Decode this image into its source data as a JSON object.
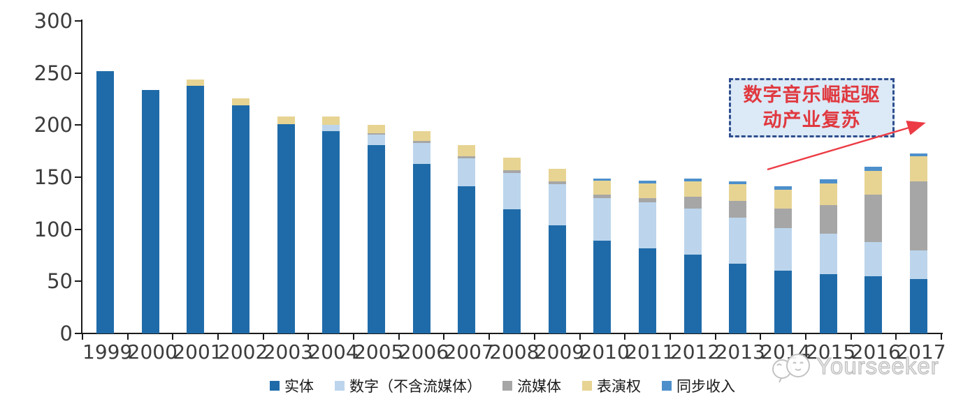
{
  "chart_data": {
    "type": "bar",
    "stacked": true,
    "categories": [
      "1999",
      "2000",
      "2001",
      "2002",
      "2003",
      "2004",
      "2005",
      "2006",
      "2007",
      "2008",
      "2009",
      "2010",
      "2011",
      "2012",
      "2013",
      "2014",
      "2015",
      "2016",
      "2017"
    ],
    "series": [
      {
        "key": "physical",
        "name": "实体",
        "color": "#1F6BA9",
        "values": [
          252,
          234,
          238,
          219,
          201,
          194,
          181,
          163,
          141,
          119,
          104,
          89,
          82,
          76,
          67,
          60,
          57,
          55,
          52
        ]
      },
      {
        "key": "digital-excl-streaming",
        "name": "数字（不含流媒体）",
        "color": "#BCD5EC",
        "values": [
          0,
          0,
          0,
          0,
          0,
          6,
          10,
          20,
          27,
          35,
          39,
          41,
          44,
          44,
          44,
          41,
          39,
          33,
          28
        ]
      },
      {
        "key": "streaming",
        "name": "流媒体",
        "color": "#A6A6A6",
        "values": [
          0,
          0,
          0,
          0,
          0,
          0,
          1,
          2,
          2,
          3,
          3,
          3,
          4,
          11,
          16,
          19,
          27,
          45,
          66
        ]
      },
      {
        "key": "performance-rights",
        "name": "表演权",
        "color": "#E7D493",
        "values": [
          0,
          0,
          6,
          7,
          7,
          8,
          8,
          9,
          11,
          12,
          12,
          14,
          14,
          15,
          16,
          18,
          21,
          23,
          24
        ]
      },
      {
        "key": "sync-revenue",
        "name": "同步收入",
        "color": "#4D8FCB",
        "values": [
          0,
          0,
          0,
          0,
          0,
          0,
          0,
          0,
          0,
          0,
          0,
          2,
          3,
          3,
          3,
          3,
          4,
          4,
          3
        ]
      }
    ],
    "ylim": [
      0,
      300
    ],
    "yticks": [
      0,
      50,
      100,
      150,
      200,
      250,
      300
    ],
    "grid": false,
    "legend_position": "bottom"
  },
  "annotation": {
    "line1": "数字音乐崛起驱",
    "line2": "动产业复苏",
    "box_fill": "#dce9f6",
    "border_color": "#2f4f8f",
    "text_color": "#e0383f",
    "arrow_color": "#ec3b44"
  },
  "watermark": {
    "text": "Yourseeker"
  }
}
